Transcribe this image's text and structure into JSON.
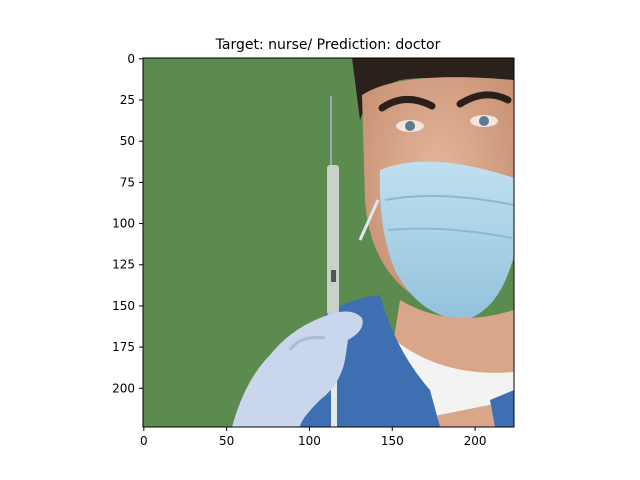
{
  "chart_data": {
    "type": "image",
    "title": "Target: nurse/ Prediction: doctor",
    "xlabel": "",
    "ylabel": "",
    "xlim": [
      -0.5,
      223.5
    ],
    "ylim": [
      223.5,
      -0.5
    ],
    "x_ticks": [
      0,
      50,
      100,
      150,
      200
    ],
    "y_ticks": [
      0,
      25,
      50,
      75,
      100,
      125,
      150,
      175,
      200
    ],
    "image_content": {
      "background_color": "#5b8b4f",
      "subject": "person in surgical mask holding syringe, wearing blue scrubs and latex glove",
      "mask_color": "#a9d3e8",
      "scrubs_color": "#3f6fb3",
      "glove_color": "#c9d6ec"
    }
  }
}
